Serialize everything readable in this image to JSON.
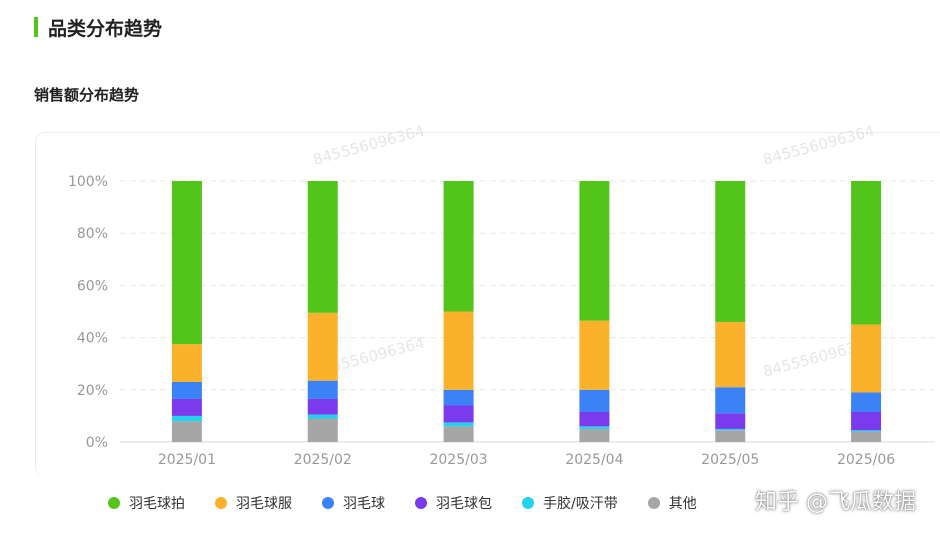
{
  "header": {
    "title": "品类分布趋势",
    "accent": "#52c41a"
  },
  "subtitle": "销售额分布趋势",
  "watermark": "知乎 @飞瓜数据",
  "chart_watermark": "845556096364",
  "chart_data": {
    "type": "bar",
    "stacked": true,
    "title": "",
    "xlabel": "",
    "ylabel": "",
    "ylim": [
      0,
      100
    ],
    "y_ticks": [
      "0%",
      "20%",
      "40%",
      "60%",
      "80%",
      "100%"
    ],
    "categories": [
      "2025/01",
      "2025/02",
      "2025/03",
      "2025/04",
      "2025/05",
      "2025/06"
    ],
    "grid": true,
    "legend_position": "bottom",
    "series": [
      {
        "name": "其他",
        "color": "#a6a6a6",
        "values": [
          8,
          9,
          6,
          5,
          4.5,
          4
        ]
      },
      {
        "name": "手胶/吸汗带",
        "color": "#22d3ee",
        "values": [
          2,
          1.5,
          1.5,
          1,
          0.5,
          0.5
        ]
      },
      {
        "name": "羽毛球包",
        "color": "#7c3aed",
        "values": [
          6.5,
          6,
          6.5,
          5.5,
          6,
          7
        ]
      },
      {
        "name": "羽毛球",
        "color": "#3b82f6",
        "values": [
          6.5,
          7,
          6,
          8.5,
          10,
          7.5
        ]
      },
      {
        "name": "羽毛球服",
        "color": "#fbb22a",
        "values": [
          14.5,
          26,
          30,
          26.5,
          25,
          26
        ]
      },
      {
        "name": "羽毛球拍",
        "color": "#52c41a",
        "values": [
          62.5,
          50.5,
          50,
          53.5,
          54,
          55
        ]
      }
    ]
  },
  "legend_items": [
    {
      "label": "羽毛球拍",
      "color": "#52c41a"
    },
    {
      "label": "羽毛球服",
      "color": "#fbb22a"
    },
    {
      "label": "羽毛球",
      "color": "#3b82f6"
    },
    {
      "label": "羽毛球包",
      "color": "#7c3aed"
    },
    {
      "label": "手胶/吸汗带",
      "color": "#22d3ee"
    },
    {
      "label": "其他",
      "color": "#a6a6a6"
    }
  ]
}
